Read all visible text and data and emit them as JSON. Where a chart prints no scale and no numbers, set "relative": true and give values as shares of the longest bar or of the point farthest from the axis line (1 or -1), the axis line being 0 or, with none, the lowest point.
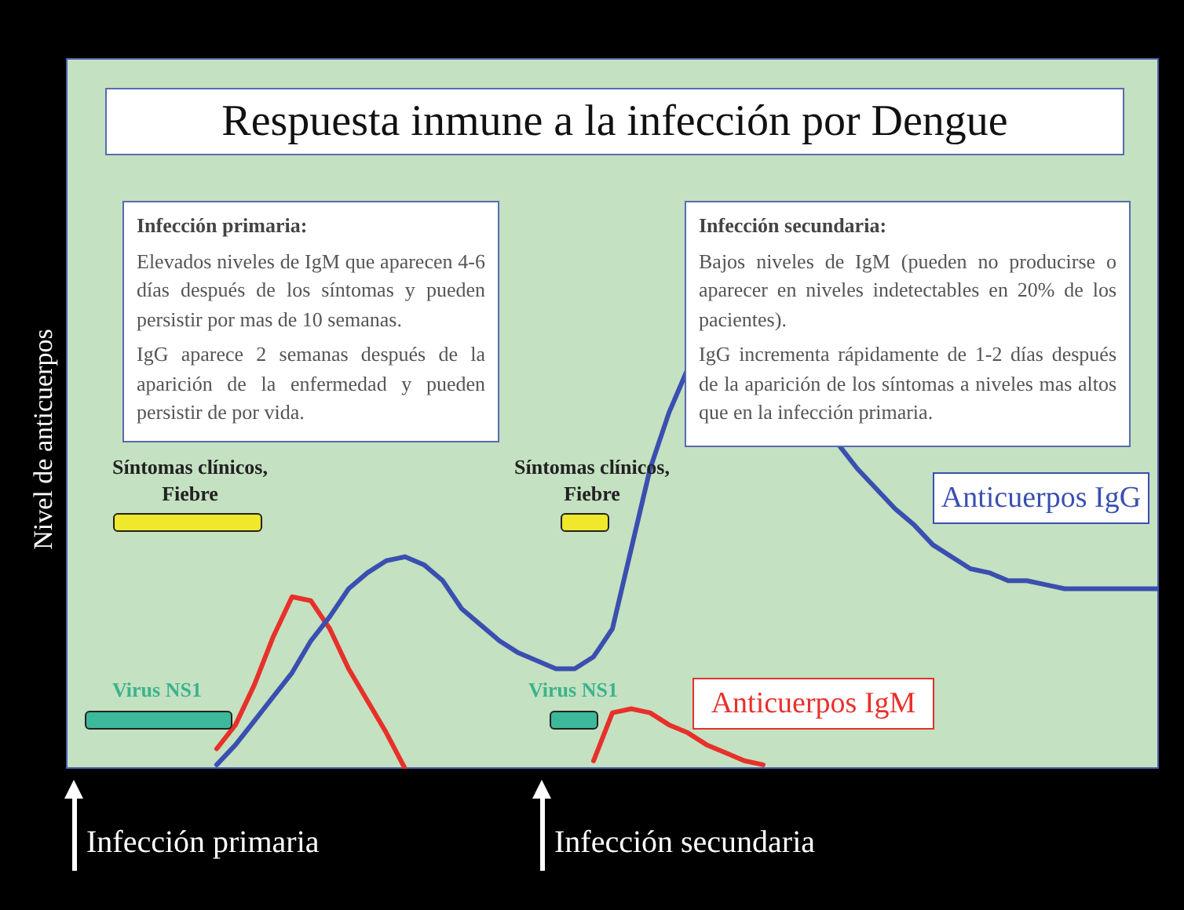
{
  "chart_data": {
    "type": "line",
    "title": "Respuesta inmune a la infección por Dengue",
    "ylabel": "Nivel de anticuerpos",
    "categories": [
      null,
      null,
      null,
      null,
      null,
      null,
      null,
      null,
      null,
      null,
      null,
      null,
      null,
      null,
      null,
      null,
      null,
      null,
      null,
      null,
      null,
      null,
      null,
      null,
      null,
      null,
      null,
      null,
      null,
      null,
      null,
      null,
      null,
      null,
      null,
      null,
      null,
      null,
      null,
      null,
      null,
      null,
      null,
      null,
      null,
      null,
      null,
      null,
      null,
      null,
      null,
      null,
      null,
      null,
      null,
      null,
      null,
      null,
      null
    ],
    "series": [
      {
        "name": "Anticuerpos IgG",
        "color": "#3a4fb0",
        "values": [
          null,
          null,
          null,
          null,
          null,
          null,
          null,
          null,
          0.01,
          0.06,
          0.12,
          0.18,
          0.24,
          0.32,
          0.38,
          0.45,
          0.49,
          0.52,
          0.53,
          0.51,
          0.47,
          0.4,
          0.36,
          0.32,
          0.29,
          0.27,
          0.25,
          0.25,
          0.28,
          0.35,
          0.55,
          0.75,
          0.89,
          1.0,
          null,
          null,
          null,
          null,
          null,
          null,
          null,
          0.81,
          0.75,
          0.7,
          0.65,
          0.61,
          0.56,
          0.53,
          0.5,
          0.49,
          0.47,
          0.47,
          0.46,
          0.45,
          0.45,
          0.45,
          0.45,
          0.45,
          0.45
        ]
      },
      {
        "name": "Anticuerpos IgM",
        "color": "#e8302a",
        "values": [
          null,
          null,
          null,
          null,
          null,
          null,
          null,
          null,
          0.05,
          0.11,
          0.21,
          0.33,
          0.43,
          0.42,
          0.35,
          0.25,
          0.17,
          0.09,
          0,
          null,
          null,
          null,
          null,
          null,
          null,
          null,
          null,
          null,
          null,
          null,
          null,
          null,
          null,
          null,
          null,
          null,
          null,
          null,
          null,
          null,
          null,
          null,
          null,
          null,
          null,
          null,
          null,
          null,
          null,
          null,
          null,
          null,
          null,
          null,
          null,
          null,
          null,
          null,
          null
        ]
      },
      {
        "color": "#e8302a",
        "values": [
          null,
          null,
          null,
          null,
          null,
          null,
          null,
          null,
          null,
          null,
          null,
          null,
          null,
          null,
          null,
          null,
          null,
          null,
          null,
          null,
          null,
          null,
          null,
          null,
          null,
          null,
          null,
          null,
          0.02,
          0.14,
          0.15,
          0.14,
          0.11,
          0.09,
          0.06,
          0.04,
          0.02,
          0.01,
          null,
          null,
          null,
          null,
          null,
          null,
          null,
          null,
          null,
          null,
          null,
          null,
          null,
          null,
          null,
          null,
          null,
          null,
          null,
          null,
          null
        ]
      }
    ],
    "relative": true,
    "legend": false,
    "tick_labels": false,
    "marker": "none",
    "line_style": "solid",
    "annotations": [
      "Infección primaria:",
      "Elevados niveles de IgM que aparecen 4-6 días después de los síntomas y pueden persistir por mas de 10 semanas.",
      "IgG aparece 2 semanas después de la aparición de la enfermedad y pueden persistir de por vida.",
      "Infección secundaria:",
      "Bajos niveles de IgM (pueden no producirse o aparecer en niveles indetectables en 20% de los pacientes).",
      "IgG incrementa rápidamente de 1-2 días después de la aparición de los síntomas a niveles mas altos que en la infección primaria.",
      "Síntomas clínicos, Fiebre",
      "Síntomas clínicos, Fiebre",
      "Virus NS1",
      "Virus NS1",
      "Infección primaria",
      "Infección secundaria"
    ]
  }
}
